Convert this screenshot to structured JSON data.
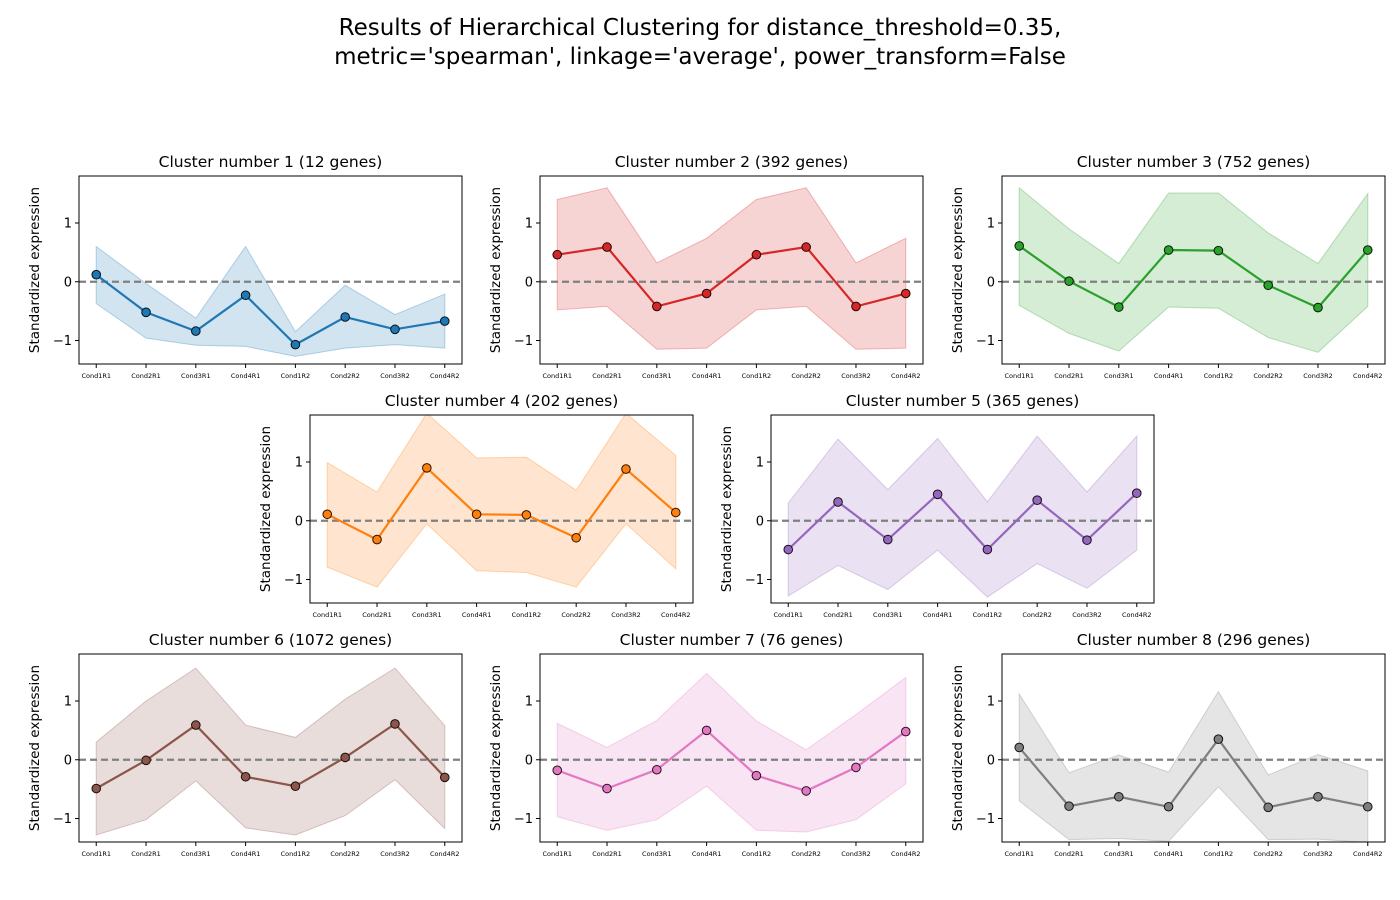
{
  "figure": {
    "title_lines": [
      "Results of Hierarchical Clustering for distance_threshold=0.35,",
      "metric='spearman', linkage='average', power_transform=False"
    ]
  },
  "chart_data": [
    {
      "type": "line",
      "title": "Cluster number 1 (12 genes)",
      "ylabel": "Standardized expression",
      "categories": [
        "Cond1R1",
        "Cond2R1",
        "Cond3R1",
        "Cond4R1",
        "Cond1R2",
        "Cond2R2",
        "Cond3R2",
        "Cond4R2"
      ],
      "values": [
        0.12,
        -0.52,
        -0.84,
        -0.23,
        -1.07,
        -0.6,
        -0.81,
        -0.67
      ],
      "band_upper": [
        0.6,
        -0.03,
        -0.62,
        0.6,
        -0.85,
        -0.06,
        -0.56,
        -0.21
      ],
      "band_lower": [
        -0.37,
        -0.96,
        -1.08,
        -1.1,
        -1.27,
        -1.13,
        -1.07,
        -1.13
      ],
      "yticks": [
        -1,
        0,
        1
      ],
      "ylim": [
        -1.4,
        1.8
      ],
      "reference_line": 0,
      "color": "#1f77b4"
    },
    {
      "type": "line",
      "title": "Cluster number 2 (392 genes)",
      "ylabel": "Standardized expression",
      "categories": [
        "Cond1R1",
        "Cond2R1",
        "Cond3R1",
        "Cond4R1",
        "Cond1R2",
        "Cond2R2",
        "Cond3R2",
        "Cond4R2"
      ],
      "values": [
        0.46,
        0.59,
        -0.42,
        -0.2,
        0.46,
        0.59,
        -0.42,
        -0.2
      ],
      "band_upper": [
        1.4,
        1.6,
        0.32,
        0.74,
        1.4,
        1.6,
        0.32,
        0.74
      ],
      "band_lower": [
        -0.48,
        -0.42,
        -1.15,
        -1.13,
        -0.48,
        -0.42,
        -1.15,
        -1.13
      ],
      "yticks": [
        -1,
        0,
        1
      ],
      "ylim": [
        -1.4,
        1.8
      ],
      "reference_line": 0,
      "color": "#d62728"
    },
    {
      "type": "line",
      "title": "Cluster number 3 (752 genes)",
      "ylabel": "Standardized expression",
      "categories": [
        "Cond1R1",
        "Cond2R1",
        "Cond3R1",
        "Cond4R1",
        "Cond1R2",
        "Cond2R2",
        "Cond3R2",
        "Cond4R2"
      ],
      "values": [
        0.61,
        0.01,
        -0.43,
        0.54,
        0.53,
        -0.06,
        -0.44,
        0.54
      ],
      "band_upper": [
        1.6,
        0.9,
        0.31,
        1.51,
        1.51,
        0.83,
        0.31,
        1.5
      ],
      "band_lower": [
        -0.4,
        -0.88,
        -1.18,
        -0.43,
        -0.45,
        -0.95,
        -1.2,
        -0.42
      ],
      "yticks": [
        -1,
        0,
        1
      ],
      "ylim": [
        -1.4,
        1.8
      ],
      "reference_line": 0,
      "color": "#2ca02c"
    },
    {
      "type": "line",
      "title": "Cluster number 4 (202 genes)",
      "ylabel": "Standardized expression",
      "categories": [
        "Cond1R1",
        "Cond2R1",
        "Cond3R1",
        "Cond4R1",
        "Cond1R2",
        "Cond2R2",
        "Cond3R2",
        "Cond4R2"
      ],
      "values": [
        0.11,
        -0.32,
        0.9,
        0.11,
        0.1,
        -0.29,
        0.88,
        0.14
      ],
      "band_upper": [
        0.99,
        0.49,
        1.83,
        1.07,
        1.08,
        0.52,
        1.83,
        1.11
      ],
      "band_lower": [
        -0.79,
        -1.13,
        -0.05,
        -0.85,
        -0.88,
        -1.13,
        -0.05,
        -0.82
      ],
      "yticks": [
        -1,
        0,
        1
      ],
      "ylim": [
        -1.4,
        1.8
      ],
      "reference_line": 0,
      "color": "#ff7f0e"
    },
    {
      "type": "line",
      "title": "Cluster number 5 (365 genes)",
      "ylabel": "Standardized expression",
      "categories": [
        "Cond1R1",
        "Cond2R1",
        "Cond3R1",
        "Cond4R1",
        "Cond1R2",
        "Cond2R2",
        "Cond3R2",
        "Cond4R2"
      ],
      "values": [
        -0.49,
        0.32,
        -0.32,
        0.45,
        -0.49,
        0.35,
        -0.33,
        0.47
      ],
      "band_upper": [
        0.3,
        1.39,
        0.53,
        1.4,
        0.32,
        1.44,
        0.49,
        1.44
      ],
      "band_lower": [
        -1.28,
        -0.76,
        -1.17,
        -0.5,
        -1.3,
        -0.73,
        -1.15,
        -0.5
      ],
      "yticks": [
        -1,
        0,
        1
      ],
      "ylim": [
        -1.4,
        1.8
      ],
      "reference_line": 0,
      "color": "#9467bd"
    },
    {
      "type": "line",
      "title": "Cluster number 6 (1072 genes)",
      "ylabel": "Standardized expression",
      "categories": [
        "Cond1R1",
        "Cond2R1",
        "Cond3R1",
        "Cond4R1",
        "Cond1R2",
        "Cond2R2",
        "Cond3R2",
        "Cond4R2"
      ],
      "values": [
        -0.49,
        -0.01,
        0.59,
        -0.29,
        -0.45,
        0.04,
        0.61,
        -0.3
      ],
      "band_upper": [
        0.3,
        1.0,
        1.56,
        0.59,
        0.38,
        1.03,
        1.56,
        0.58
      ],
      "band_lower": [
        -1.28,
        -1.02,
        -0.36,
        -1.16,
        -1.28,
        -0.95,
        -0.34,
        -1.17
      ],
      "yticks": [
        -1,
        0,
        1
      ],
      "ylim": [
        -1.4,
        1.8
      ],
      "reference_line": 0,
      "color": "#8c564b"
    },
    {
      "type": "line",
      "title": "Cluster number 7 (76 genes)",
      "ylabel": "Standardized expression",
      "categories": [
        "Cond1R1",
        "Cond2R1",
        "Cond3R1",
        "Cond4R1",
        "Cond1R2",
        "Cond2R2",
        "Cond3R2",
        "Cond4R2"
      ],
      "values": [
        -0.18,
        -0.49,
        -0.17,
        0.5,
        -0.27,
        -0.53,
        -0.13,
        0.48
      ],
      "band_upper": [
        0.62,
        0.21,
        0.67,
        1.47,
        0.66,
        0.17,
        0.77,
        1.4
      ],
      "band_lower": [
        -0.97,
        -1.2,
        -1.02,
        -0.45,
        -1.2,
        -1.23,
        -1.02,
        -0.41
      ],
      "yticks": [
        -1,
        0,
        1
      ],
      "ylim": [
        -1.4,
        1.8
      ],
      "reference_line": 0,
      "color": "#e377c2"
    },
    {
      "type": "line",
      "title": "Cluster number 8 (296 genes)",
      "ylabel": "Standardized expression",
      "categories": [
        "Cond1R1",
        "Cond2R1",
        "Cond3R1",
        "Cond4R1",
        "Cond1R2",
        "Cond2R2",
        "Cond3R2",
        "Cond4R2"
      ],
      "values": [
        0.21,
        -0.79,
        -0.63,
        -0.8,
        0.35,
        -0.81,
        -0.63,
        -0.8
      ],
      "band_upper": [
        1.12,
        -0.22,
        0.08,
        -0.21,
        1.16,
        -0.26,
        0.09,
        -0.19
      ],
      "band_lower": [
        -0.7,
        -1.36,
        -1.34,
        -1.39,
        -0.46,
        -1.36,
        -1.35,
        -1.41
      ],
      "yticks": [
        -1,
        0,
        1
      ],
      "ylim": [
        -1.4,
        1.8
      ],
      "reference_line": 0,
      "color": "#7f7f7f"
    }
  ]
}
